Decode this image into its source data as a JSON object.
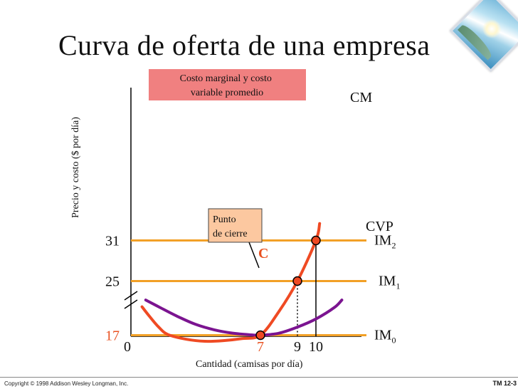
{
  "title": "Curva de oferta de una empresa",
  "copyright": "Copyright © 1998 Addison Wesley Longman, Inc.",
  "tm_label": "TM 12-3",
  "colors": {
    "orange_line": "#f2a026",
    "marginal_cost": "#ef4a23",
    "avc": "#7b1490",
    "box_fill": "#f08080",
    "callout_fill": "#fcc8a0",
    "highlight_text": "#e8501f"
  },
  "chart_data": {
    "type": "line",
    "ylabel": "Precio y costo ($ por día)",
    "xlabel": "Cantidad (camisas por día)",
    "origin_label": "0",
    "y_ticks": [
      "31",
      "25",
      "17"
    ],
    "x_ticks": [
      "7",
      "9",
      "10"
    ],
    "y_axis_break": true,
    "legend_box": "Costo marginal y costo variable promedio",
    "series": [
      {
        "name": "CM",
        "color": "#ef4a23",
        "points": [
          [
            0.6,
            21.2
          ],
          [
            1.0,
            19.8
          ],
          [
            1.5,
            18.2
          ],
          [
            2.0,
            17.1
          ],
          [
            3.0,
            16.4
          ],
          [
            4.0,
            16.1
          ],
          [
            5.0,
            16.2
          ],
          [
            6.0,
            16.5
          ],
          [
            7.0,
            17
          ],
          [
            8.0,
            20.5
          ],
          [
            9.0,
            25
          ],
          [
            10.0,
            31
          ],
          [
            10.2,
            33.5
          ]
        ]
      },
      {
        "name": "CVP",
        "color": "#7b1490",
        "points": [
          [
            0.8,
            22.2
          ],
          [
            1.5,
            21.2
          ],
          [
            2.5,
            19.8
          ],
          [
            3.5,
            18.6
          ],
          [
            4.5,
            17.8
          ],
          [
            5.5,
            17.3
          ],
          [
            6.5,
            17.05
          ],
          [
            7.0,
            17
          ],
          [
            8.0,
            17.3
          ],
          [
            9.0,
            18.2
          ],
          [
            10.0,
            19.4
          ],
          [
            11.0,
            21.1
          ],
          [
            11.4,
            22.2
          ]
        ]
      }
    ],
    "horizontal_lines": [
      {
        "name": "IM",
        "subscript": "2",
        "y": 31
      },
      {
        "name": "IM",
        "subscript": "1",
        "y": 25
      },
      {
        "name": "IM",
        "subscript": "0",
        "y": 17
      }
    ],
    "marked_points": [
      {
        "x": 10,
        "y": 31
      },
      {
        "x": 9,
        "y": 25
      },
      {
        "x": 7,
        "y": 17,
        "label": "C"
      }
    ],
    "callout": {
      "line1": "Punto",
      "line2": "de cierre"
    }
  }
}
